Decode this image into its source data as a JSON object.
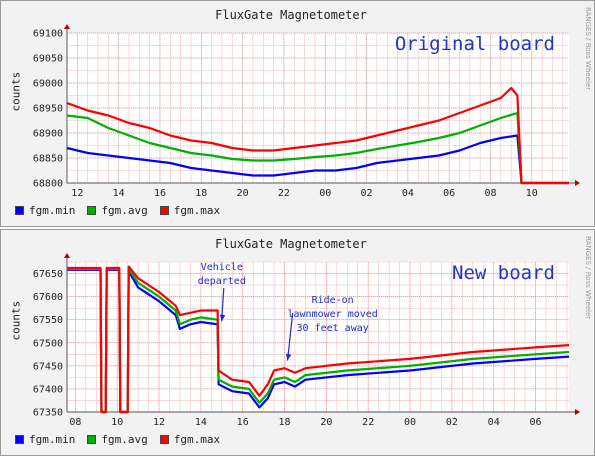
{
  "chart_data": [
    {
      "type": "line",
      "title": "FluxGate Magnetometer",
      "ylabel": "counts",
      "watermark": "RANGES / Ross Wheeler",
      "board_label": "Original board",
      "ylim": [
        68800,
        69100
      ],
      "yticks": [
        68800,
        68850,
        68900,
        68950,
        69000,
        69050,
        69100
      ],
      "x_ticks": [
        {
          "label": "12",
          "t": 0.5
        },
        {
          "label": "14",
          "t": 2.5
        },
        {
          "label": "16",
          "t": 4.5
        },
        {
          "label": "18",
          "t": 6.5
        },
        {
          "label": "20",
          "t": 8.5
        },
        {
          "label": "22",
          "t": 10.5
        },
        {
          "label": "00",
          "t": 12.5
        },
        {
          "label": "02",
          "t": 14.5
        },
        {
          "label": "04",
          "t": 16.5
        },
        {
          "label": "06",
          "t": 18.5
        },
        {
          "label": "08",
          "t": 20.5
        },
        {
          "label": "10",
          "t": 22.5
        }
      ],
      "t_range": [
        0,
        24.3
      ],
      "x_unit": "hours from 11:30",
      "series": [
        {
          "name": "fgm.min",
          "color": "#0000ff",
          "points": [
            [
              0,
              68870
            ],
            [
              1,
              68860
            ],
            [
              2,
              68855
            ],
            [
              3,
              68850
            ],
            [
              4,
              68845
            ],
            [
              5,
              68840
            ],
            [
              6,
              68830
            ],
            [
              7,
              68825
            ],
            [
              8,
              68820
            ],
            [
              9,
              68815
            ],
            [
              10,
              68815
            ],
            [
              11,
              68820
            ],
            [
              12,
              68825
            ],
            [
              13,
              68825
            ],
            [
              14,
              68830
            ],
            [
              15,
              68840
            ],
            [
              16,
              68845
            ],
            [
              17,
              68850
            ],
            [
              18,
              68855
            ],
            [
              19,
              68865
            ],
            [
              20,
              68880
            ],
            [
              21,
              68890
            ],
            [
              21.8,
              68895
            ],
            [
              22,
              68800
            ],
            [
              24.3,
              68800
            ]
          ]
        },
        {
          "name": "fgm.avg",
          "color": "#00b000",
          "points": [
            [
              0,
              68935
            ],
            [
              1,
              68930
            ],
            [
              2,
              68910
            ],
            [
              3,
              68895
            ],
            [
              4,
              68880
            ],
            [
              5,
              68870
            ],
            [
              6,
              68860
            ],
            [
              7,
              68855
            ],
            [
              8,
              68848
            ],
            [
              9,
              68845
            ],
            [
              10,
              68845
            ],
            [
              11,
              68848
            ],
            [
              12,
              68852
            ],
            [
              13,
              68855
            ],
            [
              14,
              68860
            ],
            [
              15,
              68868
            ],
            [
              16,
              68875
            ],
            [
              17,
              68882
            ],
            [
              18,
              68890
            ],
            [
              19,
              68900
            ],
            [
              20,
              68915
            ],
            [
              21,
              68930
            ],
            [
              21.8,
              68940
            ],
            [
              22,
              68800
            ],
            [
              24.3,
              68800
            ]
          ]
        },
        {
          "name": "fgm.max",
          "color": "#ff0000",
          "points": [
            [
              0,
              68960
            ],
            [
              1,
              68945
            ],
            [
              2,
              68935
            ],
            [
              3,
              68920
            ],
            [
              4,
              68910
            ],
            [
              5,
              68895
            ],
            [
              6,
              68885
            ],
            [
              7,
              68880
            ],
            [
              8,
              68870
            ],
            [
              9,
              68865
            ],
            [
              10,
              68865
            ],
            [
              11,
              68870
            ],
            [
              12,
              68875
            ],
            [
              13,
              68880
            ],
            [
              14,
              68885
            ],
            [
              15,
              68895
            ],
            [
              16,
              68905
            ],
            [
              17,
              68915
            ],
            [
              18,
              68925
            ],
            [
              19,
              68940
            ],
            [
              20,
              68955
            ],
            [
              21,
              68970
            ],
            [
              21.5,
              68990
            ],
            [
              21.8,
              68975
            ],
            [
              22,
              68800
            ],
            [
              24.3,
              68800
            ]
          ]
        }
      ]
    },
    {
      "type": "line",
      "title": "FluxGate Magnetometer",
      "ylabel": "counts",
      "watermark": "RANGES / Ross Wheeler",
      "board_label": "New board",
      "annotations": [
        {
          "text": [
            "Vehicle",
            "departed"
          ],
          "t": 15.0,
          "arrow_to": [
            14.85,
            67540
          ]
        },
        {
          "text": [
            "Ride-on",
            "lawnmower moved",
            "30 feet away"
          ],
          "t": 20.3,
          "arrow_to": [
            18.0,
            67455
          ]
        }
      ],
      "ylim": [
        67350,
        67675
      ],
      "yticks": [
        67350,
        67400,
        67450,
        67500,
        67550,
        67600,
        67650
      ],
      "x_ticks": [
        {
          "label": "08",
          "t": 8
        },
        {
          "label": "10",
          "t": 10
        },
        {
          "label": "12",
          "t": 12
        },
        {
          "label": "14",
          "t": 14
        },
        {
          "label": "16",
          "t": 16
        },
        {
          "label": "18",
          "t": 18
        },
        {
          "label": "20",
          "t": 20
        },
        {
          "label": "22",
          "t": 22
        },
        {
          "label": "00",
          "t": 24
        },
        {
          "label": "02",
          "t": 26
        },
        {
          "label": "04",
          "t": 28
        },
        {
          "label": "06",
          "t": 30
        }
      ],
      "t_range": [
        7.6,
        31.6
      ],
      "x_unit": "hour of day",
      "series": [
        {
          "name": "fgm.min",
          "color": "#0000ff",
          "points": [
            [
              7.6,
              67658
            ],
            [
              9.2,
              67658
            ],
            [
              9.25,
              67350
            ],
            [
              9.45,
              67350
            ],
            [
              9.5,
              67658
            ],
            [
              10.1,
              67658
            ],
            [
              10.15,
              67350
            ],
            [
              10.5,
              67350
            ],
            [
              10.55,
              67655
            ],
            [
              11,
              67620
            ],
            [
              12,
              67590
            ],
            [
              12.8,
              67560
            ],
            [
              13,
              67530
            ],
            [
              13.5,
              67540
            ],
            [
              14,
              67545
            ],
            [
              14.8,
              67540
            ],
            [
              14.85,
              67410
            ],
            [
              15.5,
              67395
            ],
            [
              16.3,
              67390
            ],
            [
              16.8,
              67360
            ],
            [
              17.2,
              67380
            ],
            [
              17.5,
              67410
            ],
            [
              18,
              67415
            ],
            [
              18.5,
              67405
            ],
            [
              19,
              67420
            ],
            [
              21,
              67430
            ],
            [
              24,
              67440
            ],
            [
              27,
              67455
            ],
            [
              30,
              67465
            ],
            [
              31.6,
              67470
            ]
          ]
        },
        {
          "name": "fgm.avg",
          "color": "#00b000",
          "points": [
            [
              7.6,
              67660
            ],
            [
              9.2,
              67660
            ],
            [
              9.25,
              67350
            ],
            [
              9.45,
              67350
            ],
            [
              9.5,
              67660
            ],
            [
              10.1,
              67660
            ],
            [
              10.15,
              67350
            ],
            [
              10.5,
              67350
            ],
            [
              10.55,
              67660
            ],
            [
              11,
              67630
            ],
            [
              12,
              67600
            ],
            [
              12.8,
              67570
            ],
            [
              13,
              67540
            ],
            [
              13.5,
              67550
            ],
            [
              14,
              67555
            ],
            [
              14.8,
              67550
            ],
            [
              14.85,
              67420
            ],
            [
              15.5,
              67405
            ],
            [
              16.3,
              67400
            ],
            [
              16.8,
              67370
            ],
            [
              17.2,
              67390
            ],
            [
              17.5,
              67420
            ],
            [
              18,
              67425
            ],
            [
              18.5,
              67415
            ],
            [
              19,
              67430
            ],
            [
              21,
              67440
            ],
            [
              24,
              67450
            ],
            [
              27,
              67465
            ],
            [
              30,
              67475
            ],
            [
              31.6,
              67480
            ]
          ]
        },
        {
          "name": "fgm.max",
          "color": "#ff0000",
          "points": [
            [
              7.6,
              67662
            ],
            [
              9.2,
              67662
            ],
            [
              9.25,
              67350
            ],
            [
              9.45,
              67350
            ],
            [
              9.5,
              67662
            ],
            [
              10.1,
              67662
            ],
            [
              10.15,
              67350
            ],
            [
              10.5,
              67350
            ],
            [
              10.55,
              67665
            ],
            [
              11,
              67640
            ],
            [
              12,
              67610
            ],
            [
              12.8,
              67580
            ],
            [
              13,
              67560
            ],
            [
              13.5,
              67565
            ],
            [
              14,
              67570
            ],
            [
              14.8,
              67570
            ],
            [
              14.85,
              67440
            ],
            [
              15.5,
              67420
            ],
            [
              16.3,
              67415
            ],
            [
              16.8,
              67385
            ],
            [
              17.2,
              67410
            ],
            [
              17.5,
              67440
            ],
            [
              18,
              67445
            ],
            [
              18.5,
              67435
            ],
            [
              19,
              67445
            ],
            [
              21,
              67455
            ],
            [
              24,
              67465
            ],
            [
              27,
              67480
            ],
            [
              30,
              67490
            ],
            [
              31.6,
              67495
            ]
          ]
        }
      ]
    }
  ]
}
